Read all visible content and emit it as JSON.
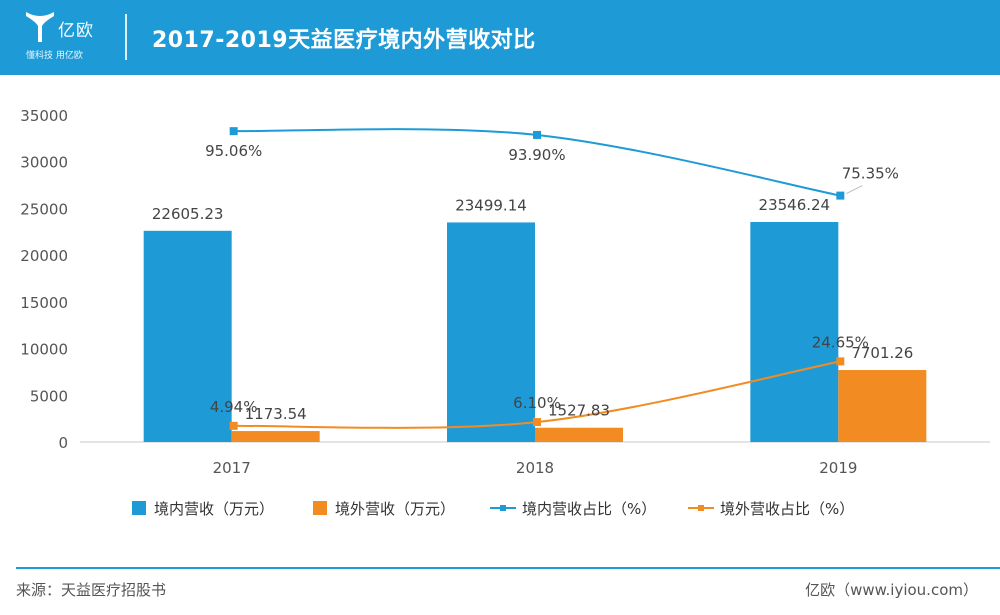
{
  "header": {
    "logo_text": "亿欧",
    "logo_slogan": "懂科技 用亿欧",
    "title": "2017-2019天益医疗境内外营收对比"
  },
  "colors": {
    "header_bg": "#1e9bd7",
    "domestic": "#1e9bd7",
    "foreign": "#f28c22"
  },
  "legend": {
    "domestic_revenue": "境内营收（万元）",
    "foreign_revenue": "境外营收（万元）",
    "domestic_share": "境内营收占比（%）",
    "foreign_share": "境外营收占比（%）"
  },
  "footer": {
    "source": "来源：天益医疗招股书",
    "site": "亿欧（www.iyiou.com）"
  },
  "chart_data": {
    "type": "bar",
    "title": "2017-2019天益医疗境内外营收对比",
    "categories": [
      "2017",
      "2018",
      "2019"
    ],
    "ylim": [
      0,
      35000
    ],
    "yticks": [
      0,
      5000,
      10000,
      15000,
      20000,
      25000,
      30000,
      35000
    ],
    "grid": false,
    "legend_position": "bottom",
    "series": [
      {
        "name": "境内营收（万元）",
        "kind": "bar",
        "values": [
          22605.23,
          23499.14,
          23546.24
        ],
        "labels": [
          "22605.23",
          "23499.14",
          "23546.24"
        ]
      },
      {
        "name": "境外营收（万元）",
        "kind": "bar",
        "values": [
          1173.54,
          1527.83,
          7701.26
        ],
        "labels": [
          "1173.54",
          "1527.83",
          "7701.26"
        ]
      },
      {
        "name": "境内营收占比（%）",
        "kind": "line",
        "values": [
          95.06,
          93.9,
          75.35
        ],
        "labels": [
          "95.06%",
          "93.90%",
          "75.35%"
        ]
      },
      {
        "name": "境外营收占比（%）",
        "kind": "line",
        "values": [
          4.94,
          6.1,
          24.65
        ],
        "labels": [
          "4.94%",
          "6.10%",
          "24.65%"
        ]
      }
    ]
  }
}
